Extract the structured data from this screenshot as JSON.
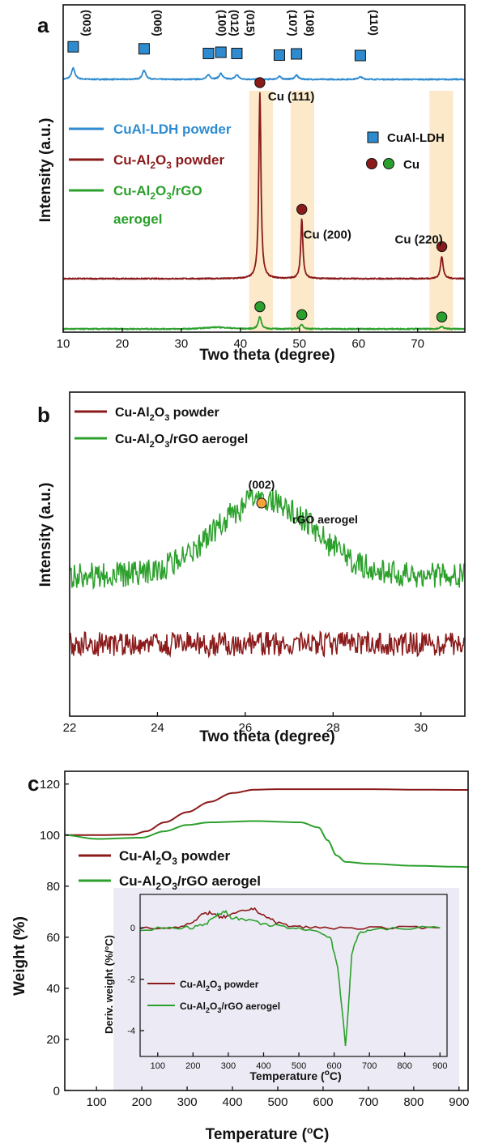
{
  "panels": {
    "a": {
      "letter": "a",
      "ylabel": "Intensity (a.u.)",
      "xlabel": "Two theta (degree)",
      "legend": {
        "ldh": "CuAl-LDH powder",
        "cuALO_pre": "Cu-Al",
        "cuALO_sub1": "2",
        "cuALO_mid": "O",
        "cuALO_sub2": "3",
        "cuALO_post": " powder",
        "rgo_pre": "Cu-Al",
        "rgo_sub1": "2",
        "rgo_mid": "O",
        "rgo_sub2": "3",
        "rgo_post": "/rGO",
        "rgo_line2": "aerogel",
        "marker_ldh": "CuAl-LDH",
        "marker_cu": "Cu"
      },
      "ldh_peak_labels": [
        "(003)",
        "(006)",
        "(100)",
        "(012)",
        "(015)",
        "(107)",
        "(108)",
        "(110)"
      ],
      "cu_peak_labels": [
        "Cu (111)",
        "Cu (200)",
        "Cu (220)"
      ]
    },
    "b": {
      "letter": "b",
      "ylabel": "Intensity (a.u.)",
      "xlabel": "Two theta (degree)",
      "legend": {
        "p1_pre": "Cu-Al",
        "p1_sub1": "2",
        "p1_mid": "O",
        "p1_sub2": "3",
        "p1_post": " powder",
        "p2_pre": "Cu-Al",
        "p2_sub1": "2",
        "p2_mid": "O",
        "p2_sub2": "3",
        "p2_post": "/rGO aerogel"
      },
      "peak_label": "(002)",
      "annotation": "rGO aerogel"
    },
    "c": {
      "letter": "c",
      "ylabel": "Weight (%)",
      "xlabel_pre": "Temperature (",
      "xlabel_sup": "o",
      "xlabel_post": "C)",
      "legend": {
        "p1_pre": "Cu-Al",
        "p1_sub1": "2",
        "p1_mid": "O",
        "p1_sub2": "3",
        "p1_post": " powder",
        "p2_pre": "Cu-Al",
        "p2_sub1": "2",
        "p2_mid": "O",
        "p2_sub2": "3",
        "p2_post": "/rGO aerogel"
      },
      "inset": {
        "ylabel": "Deriv. weight (%/°C)",
        "xlabel_pre": "Temperature (",
        "xlabel_sup": "o",
        "xlabel_post": "C)",
        "legend": {
          "p1_pre": "Cu-Al",
          "p1_sub1": "2",
          "p1_mid": "O",
          "p1_sub2": "3",
          "p1_post": " powder",
          "p2_pre": "Cu-Al",
          "p2_sub1": "2",
          "p2_mid": "O",
          "p2_sub2": "3",
          "p2_post": "/rGO aerogel"
        }
      }
    }
  },
  "colors": {
    "blue": "#2e8bd0",
    "red": "#8b1a1a",
    "green": "#2ca02c",
    "highlight": "#fbe9c9",
    "inset_bg": "#ecebf5",
    "peak_orange": "#f5a338"
  },
  "chart_data": [
    {
      "type": "line",
      "panel": "a",
      "xlabel": "Two theta (degree)",
      "ylabel": "Intensity (a.u.)",
      "xlim": [
        10,
        78
      ],
      "xticks": [
        10,
        20,
        30,
        40,
        50,
        60,
        70
      ],
      "yticks": [],
      "series": [
        {
          "name": "CuAl-LDH powder",
          "color": "#2e8bd0",
          "peaks": [
            {
              "x": 11.7,
              "label": "(003)",
              "height": 0.55
            },
            {
              "x": 23.7,
              "label": "(006)",
              "height": 0.45
            },
            {
              "x": 34.6,
              "label": "(100)",
              "height": 0.22
            },
            {
              "x": 36.7,
              "label": "(012)",
              "height": 0.28
            },
            {
              "x": 39.4,
              "label": "(015)",
              "height": 0.22
            },
            {
              "x": 46.6,
              "label": "(107)",
              "height": 0.14
            },
            {
              "x": 49.5,
              "label": "(108)",
              "height": 0.2
            },
            {
              "x": 60.3,
              "label": "(110)",
              "height": 0.12
            }
          ]
        },
        {
          "name": "Cu-Al2O3 powder",
          "color": "#8b1a1a",
          "peaks": [
            {
              "x": 43.3,
              "label": "Cu (111)",
              "height": 1.0
            },
            {
              "x": 50.4,
              "label": "Cu (200)",
              "height": 0.32
            },
            {
              "x": 74.1,
              "label": "Cu (220)",
              "height": 0.12
            }
          ]
        },
        {
          "name": "Cu-Al2O3/rGO aerogel",
          "color": "#2ca02c",
          "peaks": [
            {
              "x": 43.3,
              "label": "Cu (111)",
              "height": 0.28
            },
            {
              "x": 50.4,
              "label": "Cu (200)",
              "height": 0.1
            },
            {
              "x": 74.1,
              "label": "Cu (220)",
              "height": 0.05
            }
          ]
        }
      ],
      "highlight_bands": [
        [
          41.5,
          45.5
        ],
        [
          48.5,
          52.5
        ],
        [
          72,
          76
        ]
      ]
    },
    {
      "type": "line",
      "panel": "b",
      "xlabel": "Two theta (degree)",
      "ylabel": "Intensity (a.u.)",
      "xlim": [
        22,
        31
      ],
      "xticks": [
        22,
        24,
        26,
        28,
        30
      ],
      "yticks": [],
      "series": [
        {
          "name": "Cu-Al2O3 powder",
          "color": "#8b1a1a",
          "trend": "flat with noise"
        },
        {
          "name": "Cu-Al2O3/rGO aerogel",
          "color": "#2ca02c",
          "peak_x": 26.4,
          "peak_label": "(002)"
        }
      ]
    },
    {
      "type": "line",
      "panel": "c",
      "xlabel": "Temperature (°C)",
      "ylabel": "Weight (%)",
      "xlim": [
        30,
        920
      ],
      "ylim": [
        0,
        125
      ],
      "xticks": [
        100,
        200,
        300,
        400,
        500,
        600,
        700,
        800,
        900
      ],
      "yticks": [
        0,
        20,
        40,
        60,
        80,
        100,
        120
      ],
      "series": [
        {
          "name": "Cu-Al2O3 powder",
          "color": "#8b1a1a",
          "points": [
            [
              30,
              100
            ],
            [
              100,
              100
            ],
            [
              180,
              100.2
            ],
            [
              210,
              101.5
            ],
            [
              250,
              105
            ],
            [
              300,
              109
            ],
            [
              350,
              113
            ],
            [
              400,
              116.5
            ],
            [
              450,
              117.8
            ],
            [
              500,
              118
            ],
            [
              600,
              118
            ],
            [
              700,
              118
            ],
            [
              800,
              117.8
            ],
            [
              920,
              117.7
            ]
          ]
        },
        {
          "name": "Cu-Al2O3/rGO aerogel",
          "color": "#2ca02c",
          "points": [
            [
              30,
              100
            ],
            [
              100,
              98.5
            ],
            [
              200,
              99
            ],
            [
              250,
              101.5
            ],
            [
              300,
              104
            ],
            [
              350,
              105
            ],
            [
              450,
              105.5
            ],
            [
              550,
              105
            ],
            [
              590,
              103
            ],
            [
              610,
              98
            ],
            [
              630,
              92
            ],
            [
              650,
              89.5
            ],
            [
              700,
              88.8
            ],
            [
              800,
              88
            ],
            [
              900,
              87.6
            ],
            [
              920,
              87.5
            ]
          ]
        }
      ]
    },
    {
      "type": "line",
      "panel": "c-inset",
      "xlabel": "Temperature (°C)",
      "ylabel": "Deriv. weight (%/°C)",
      "xlim": [
        50,
        920
      ],
      "ylim": [
        -5,
        1.3
      ],
      "xticks": [
        100,
        200,
        300,
        400,
        500,
        600,
        700,
        800,
        900
      ],
      "yticks": [
        -4,
        -2,
        0
      ],
      "series": [
        {
          "name": "Cu-Al2O3 powder",
          "color": "#8b1a1a",
          "points": [
            [
              50,
              0
            ],
            [
              150,
              0.02
            ],
            [
              200,
              0.2
            ],
            [
              230,
              0.55
            ],
            [
              250,
              0.6
            ],
            [
              275,
              0.4
            ],
            [
              300,
              0.45
            ],
            [
              340,
              0.65
            ],
            [
              370,
              0.75
            ],
            [
              400,
              0.5
            ],
            [
              430,
              0.25
            ],
            [
              470,
              0.08
            ],
            [
              520,
              0.02
            ],
            [
              600,
              0
            ],
            [
              700,
              0
            ],
            [
              800,
              0
            ],
            [
              900,
              0
            ]
          ]
        },
        {
          "name": "Cu-Al2O3/rGO aerogel",
          "color": "#2ca02c",
          "points": [
            [
              50,
              -0.05
            ],
            [
              150,
              0
            ],
            [
              200,
              0.02
            ],
            [
              240,
              0.2
            ],
            [
              270,
              0.5
            ],
            [
              290,
              0.65
            ],
            [
              310,
              0.4
            ],
            [
              350,
              0.3
            ],
            [
              400,
              0.15
            ],
            [
              450,
              0.05
            ],
            [
              500,
              -0.05
            ],
            [
              560,
              -0.15
            ],
            [
              590,
              -0.4
            ],
            [
              610,
              -1.5
            ],
            [
              625,
              -3.5
            ],
            [
              632,
              -4.6
            ],
            [
              640,
              -3.2
            ],
            [
              650,
              -1.0
            ],
            [
              670,
              -0.2
            ],
            [
              700,
              -0.1
            ],
            [
              800,
              0
            ],
            [
              900,
              0
            ]
          ]
        }
      ]
    }
  ]
}
